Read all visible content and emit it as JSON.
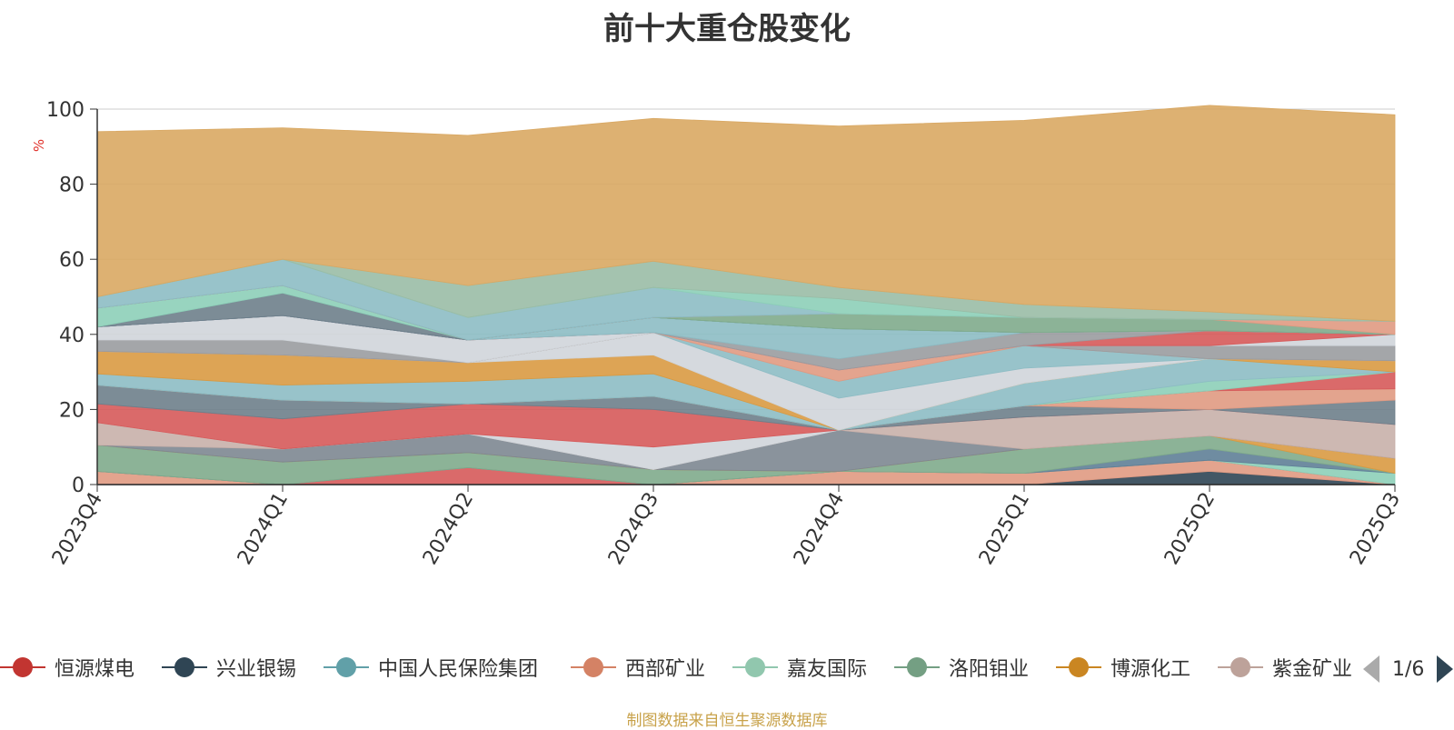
{
  "page": {
    "title": "前十大重仓股变化",
    "source": "制图数据来自恒生聚源数据库",
    "pager": "1/6"
  },
  "chart_data": {
    "type": "area",
    "stacked": true,
    "title": "前十大重仓股变化",
    "ylabel": "%",
    "ylim": [
      0,
      100
    ],
    "yticks": [
      0,
      20,
      40,
      60,
      80,
      100
    ],
    "categories": [
      "2023Q4",
      "2024Q1",
      "2024Q2",
      "2024Q3",
      "2024Q4",
      "2025Q1",
      "2025Q2",
      "2025Q3"
    ],
    "legend_position": "bottom",
    "series": [
      {
        "name": "",
        "color": "#2f4554",
        "values": [
          0,
          0,
          0,
          0,
          0,
          0,
          3.5,
          0
        ]
      },
      {
        "name": "",
        "color": "#e09a82",
        "values": [
          3.5,
          0,
          0,
          0,
          3.5,
          3,
          3,
          0
        ]
      },
      {
        "name": "",
        "color": "#d65a5a",
        "values": [
          0,
          0,
          4.5,
          0,
          0,
          0,
          0,
          0
        ]
      },
      {
        "name": "",
        "color": "#8dcfb8",
        "values": [
          0,
          0,
          0,
          0,
          0,
          0,
          0,
          3
        ]
      },
      {
        "name": "",
        "color": "#5f7f97",
        "values": [
          0,
          0,
          0,
          0,
          0,
          0,
          3,
          0
        ]
      },
      {
        "name": "",
        "color": "#80ab8c",
        "values": [
          7,
          6,
          4,
          4,
          0,
          6.5,
          3.5,
          0
        ]
      },
      {
        "name": "",
        "color": "#d99a42",
        "values": [
          0,
          0,
          0,
          0,
          0,
          0,
          0,
          4
        ]
      },
      {
        "name": "",
        "color": "#7d8791",
        "values": [
          0,
          3.5,
          5,
          0,
          11,
          0,
          0,
          0
        ]
      },
      {
        "name": "",
        "color": "#c8b0aa",
        "values": [
          6,
          0,
          0,
          0,
          0,
          8.5,
          7,
          9
        ]
      },
      {
        "name": "",
        "color": "#d0d5da",
        "values": [
          0,
          0,
          0,
          6,
          0,
          0,
          0,
          0
        ]
      },
      {
        "name": "",
        "color": "#d65a5a",
        "values": [
          5,
          8,
          8,
          10,
          0,
          0,
          0,
          0
        ]
      },
      {
        "name": "",
        "color": "#6e7f8b",
        "values": [
          5,
          5,
          0,
          3.5,
          0,
          3,
          0,
          6.5
        ]
      },
      {
        "name": "",
        "color": "#e09a82",
        "values": [
          0,
          0,
          0,
          0,
          0,
          0,
          5,
          3
        ]
      },
      {
        "name": "",
        "color": "#d65a5a",
        "values": [
          0,
          0,
          0,
          0,
          0,
          0,
          0,
          4.5
        ]
      },
      {
        "name": "",
        "color": "#8dcfb8",
        "values": [
          0,
          0,
          0,
          0,
          0,
          0,
          2.5,
          0
        ]
      },
      {
        "name": "",
        "color": "#8dbcc4",
        "values": [
          3,
          4,
          6,
          6,
          0,
          6,
          6,
          0
        ]
      },
      {
        "name": "",
        "color": "#d99a42",
        "values": [
          6,
          8,
          5,
          5,
          0,
          0,
          0,
          3
        ]
      },
      {
        "name": "",
        "color": "#d0d5da",
        "values": [
          0,
          0,
          0,
          6,
          8.5,
          4,
          0,
          0
        ]
      },
      {
        "name": "",
        "color": "#8dbcc4",
        "values": [
          0,
          0,
          0,
          0,
          4.5,
          6,
          0,
          0
        ]
      },
      {
        "name": "",
        "color": "#e09a82",
        "values": [
          0,
          0,
          0,
          0,
          3,
          0,
          0,
          0
        ]
      },
      {
        "name": "",
        "color": "#9a9ca0",
        "values": [
          3,
          4,
          0,
          0,
          0,
          0,
          3.5,
          4
        ]
      },
      {
        "name": "",
        "color": "#d0d5da",
        "values": [
          3.5,
          6.5,
          6,
          0,
          0,
          0,
          0,
          3
        ]
      },
      {
        "name": "",
        "color": "#d65a5a",
        "values": [
          0,
          0,
          0,
          0,
          0,
          0,
          4,
          0
        ]
      },
      {
        "name": "",
        "color": "#9a9ca0",
        "values": [
          0,
          0,
          0,
          0,
          3,
          3.5,
          0,
          0
        ]
      },
      {
        "name": "",
        "color": "#8dbcc4",
        "values": [
          0,
          0,
          0,
          4,
          8,
          0,
          0,
          0
        ]
      },
      {
        "name": "",
        "color": "#5f7f97",
        "values": [
          0,
          0,
          0,
          0,
          0,
          0,
          0,
          0
        ]
      },
      {
        "name": "",
        "color": "#6e7f8b",
        "values": [
          0,
          6,
          0,
          0,
          0,
          0,
          0,
          0
        ]
      },
      {
        "name": "",
        "color": "#8dcfb8",
        "values": [
          5,
          2,
          0,
          0,
          0,
          0,
          0,
          0
        ]
      },
      {
        "name": "",
        "color": "#80ab8c",
        "values": [
          0,
          0,
          0,
          0,
          4,
          4,
          3,
          0
        ]
      },
      {
        "name": "",
        "color": "#e09a82",
        "values": [
          0,
          0,
          0,
          0,
          0,
          0,
          0,
          3.5
        ]
      },
      {
        "name": "",
        "color": "#9a9ca0",
        "values": [
          0,
          0,
          0,
          0,
          0,
          0,
          0,
          0
        ]
      },
      {
        "name": "",
        "color": "#8dbcc4",
        "values": [
          3,
          7,
          6,
          8,
          0,
          0,
          0,
          0
        ]
      },
      {
        "name": "",
        "color": "#8dcfb8",
        "values": [
          0,
          0,
          0,
          0,
          4,
          0,
          0,
          0
        ]
      },
      {
        "name": "",
        "color": "#9abca6",
        "values": [
          0,
          0,
          8.5,
          7,
          3,
          3.5,
          2,
          0
        ]
      },
      {
        "name": "",
        "color": "#d9a863",
        "values": [
          44,
          35,
          40,
          38,
          43,
          49,
          55,
          55
        ]
      }
    ]
  },
  "legend": {
    "items": [
      {
        "name": "恒源煤电",
        "color": "#c23531"
      },
      {
        "name": "兴业银锡",
        "color": "#2f4554"
      },
      {
        "name": "中国人民保险集团",
        "color": "#61a0a8"
      },
      {
        "name": "西部矿业",
        "color": "#d48265"
      },
      {
        "name": "嘉友国际",
        "color": "#91c7ae"
      },
      {
        "name": "洛阳钼业",
        "color": "#749f83"
      },
      {
        "name": "博源化工",
        "color": "#ca8622"
      },
      {
        "name": "紫金矿业",
        "color": "#bda29a"
      }
    ]
  }
}
